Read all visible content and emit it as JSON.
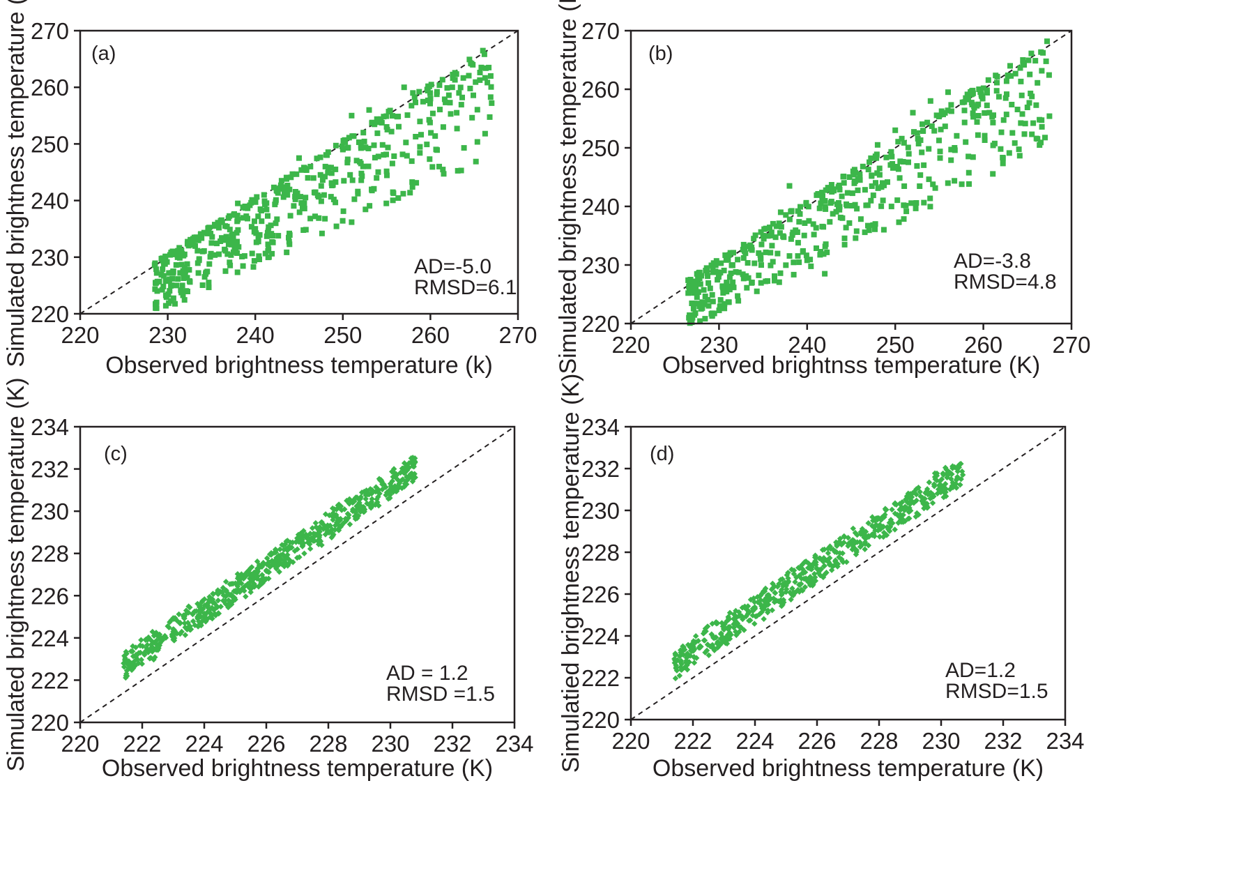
{
  "style": {
    "marker_color": "#3cb64a",
    "axis_color": "#231f20",
    "reference_line_color": "#231f20"
  },
  "chart_data": [
    {
      "type": "scatter",
      "panel_label": "(a)",
      "marker": "square",
      "xlabel": "Observed brightness temperature (k)",
      "ylabel": "Simulated brightness temperature (k)",
      "xlim": [
        220,
        270
      ],
      "ylim": [
        220,
        270
      ],
      "xticks": [
        "220",
        "230",
        "240",
        "250",
        "260",
        "270"
      ],
      "yticks": [
        "220",
        "230",
        "240",
        "250",
        "260",
        "270"
      ],
      "reference_line": "1:1 dashed",
      "stats": [
        "AD=-5.0",
        "RMSD=6.1"
      ],
      "series": [
        {
          "points_generated": true,
          "count": 520,
          "x_range": [
            228.5,
            267
          ],
          "offset_range": [
            -18,
            2
          ],
          "points": [
            [
              228.7,
              225.5
            ],
            [
              229.5,
              224.8
            ],
            [
              230.2,
              226.1
            ],
            [
              231,
              225
            ],
            [
              232,
              226.8
            ],
            [
              233.5,
              227.2
            ],
            [
              234,
              231
            ],
            [
              235,
              232.5
            ],
            [
              236.5,
              233
            ],
            [
              238,
              239.5
            ],
            [
              240,
              235
            ],
            [
              241,
              241
            ],
            [
              243,
              243.5
            ],
            [
              245,
              247.5
            ],
            [
              246,
              244
            ],
            [
              248,
              246
            ],
            [
              250,
              249
            ],
            [
              251,
              255
            ],
            [
              253,
              256
            ],
            [
              255,
              253
            ],
            [
              257,
              260
            ],
            [
              258,
              259
            ],
            [
              260,
              258
            ],
            [
              261,
              246
            ],
            [
              262.5,
              260
            ],
            [
              263,
              255.5
            ],
            [
              267,
              257.2
            ]
          ]
        }
      ]
    },
    {
      "type": "scatter",
      "panel_label": "(b)",
      "marker": "square",
      "xlabel": "Observed brightnss temperature (K)",
      "ylabel": "Simulated brightness temperature (K)",
      "xlim": [
        220,
        270
      ],
      "ylim": [
        220,
        270
      ],
      "xticks": [
        "220",
        "230",
        "240",
        "250",
        "260",
        "270"
      ],
      "yticks": [
        "220",
        "230",
        "240",
        "250",
        "260",
        "270"
      ],
      "reference_line": "1:1 dashed",
      "stats": [
        "AD=-3.8",
        "RMSD=4.8"
      ],
      "series": [
        {
          "points_generated": true,
          "count": 520,
          "x_range": [
            226.5,
            267.5
          ],
          "offset_range": [
            -16,
            2.5
          ],
          "points": [
            [
              226.5,
              225.2
            ],
            [
              227.5,
              224.5
            ],
            [
              229,
              226
            ],
            [
              230,
              228.5
            ],
            [
              231.5,
              230
            ],
            [
              233,
              232
            ],
            [
              235,
              235
            ],
            [
              237,
              239
            ],
            [
              238,
              243.5
            ],
            [
              240,
              230.8
            ],
            [
              242,
              228.5
            ],
            [
              244,
              238
            ],
            [
              246,
              244.5
            ],
            [
              248,
              250.5
            ],
            [
              250,
              253
            ],
            [
              252,
              256
            ],
            [
              254,
              258
            ],
            [
              256,
              259.5
            ],
            [
              258,
              258.5
            ],
            [
              259.5,
              260
            ],
            [
              261,
              255.3
            ],
            [
              265,
              256.9
            ],
            [
              267.5,
              255.4
            ]
          ]
        }
      ]
    },
    {
      "type": "scatter",
      "panel_label": "(c)",
      "marker": "diamond",
      "xlabel": "Observed brightness temperature (K)",
      "ylabel": "Simulated brightness temperature (K)",
      "xlim": [
        220,
        234
      ],
      "ylim": [
        220,
        234
      ],
      "xticks": [
        "220",
        "222",
        "224",
        "226",
        "228",
        "230",
        "232",
        "234"
      ],
      "yticks": [
        "220",
        "222",
        "224",
        "226",
        "228",
        "230",
        "232",
        "234"
      ],
      "reference_line": "1:1 dashed",
      "stats": [
        "AD = 1.2",
        "RMSD =1.5"
      ],
      "series": [
        {
          "points_generated": true,
          "count": 650,
          "x_range": [
            221.4,
            230.8
          ],
          "offset_range": [
            0.7,
            1.9
          ],
          "points": [
            [
              221.4,
              222.8
            ],
            [
              221.8,
              223.2
            ],
            [
              222.5,
              223.6
            ],
            [
              223,
              224.3
            ],
            [
              224,
              225
            ],
            [
              225,
              226.2
            ],
            [
              226,
              227.2
            ],
            [
              227,
              228.2
            ],
            [
              228,
              229.3
            ],
            [
              229,
              230.4
            ],
            [
              230,
              231.3
            ],
            [
              230.5,
              232.1
            ],
            [
              230.8,
              231.6
            ]
          ]
        }
      ]
    },
    {
      "type": "scatter",
      "panel_label": "(d)",
      "marker": "diamond",
      "xlabel": "Observed brightness temperature (K)",
      "ylabel": "Simulatied brightness temperature (K)",
      "xlim": [
        220,
        234
      ],
      "ylim": [
        220,
        234
      ],
      "xticks": [
        "220",
        "222",
        "224",
        "226",
        "228",
        "230",
        "232",
        "234"
      ],
      "yticks": [
        "220",
        "222",
        "224",
        "226",
        "228",
        "230",
        "232",
        "234"
      ],
      "reference_line": "1:1 dashed",
      "stats": [
        "AD=1.2",
        "RMSD=1.5"
      ],
      "series": [
        {
          "points_generated": true,
          "count": 600,
          "x_range": [
            221.4,
            230.7
          ],
          "offset_range": [
            0.6,
            1.9
          ],
          "points": [
            [
              221.4,
              222.9
            ],
            [
              222,
              223.4
            ],
            [
              223,
              224.3
            ],
            [
              224,
              225.3
            ],
            [
              225,
              226.1
            ],
            [
              226,
              227.2
            ],
            [
              227,
              228.3
            ],
            [
              228,
              229.2
            ],
            [
              229,
              230.3
            ],
            [
              230,
              231.2
            ],
            [
              230.6,
              232.2
            ],
            [
              230.7,
              231.7
            ]
          ]
        }
      ]
    }
  ]
}
